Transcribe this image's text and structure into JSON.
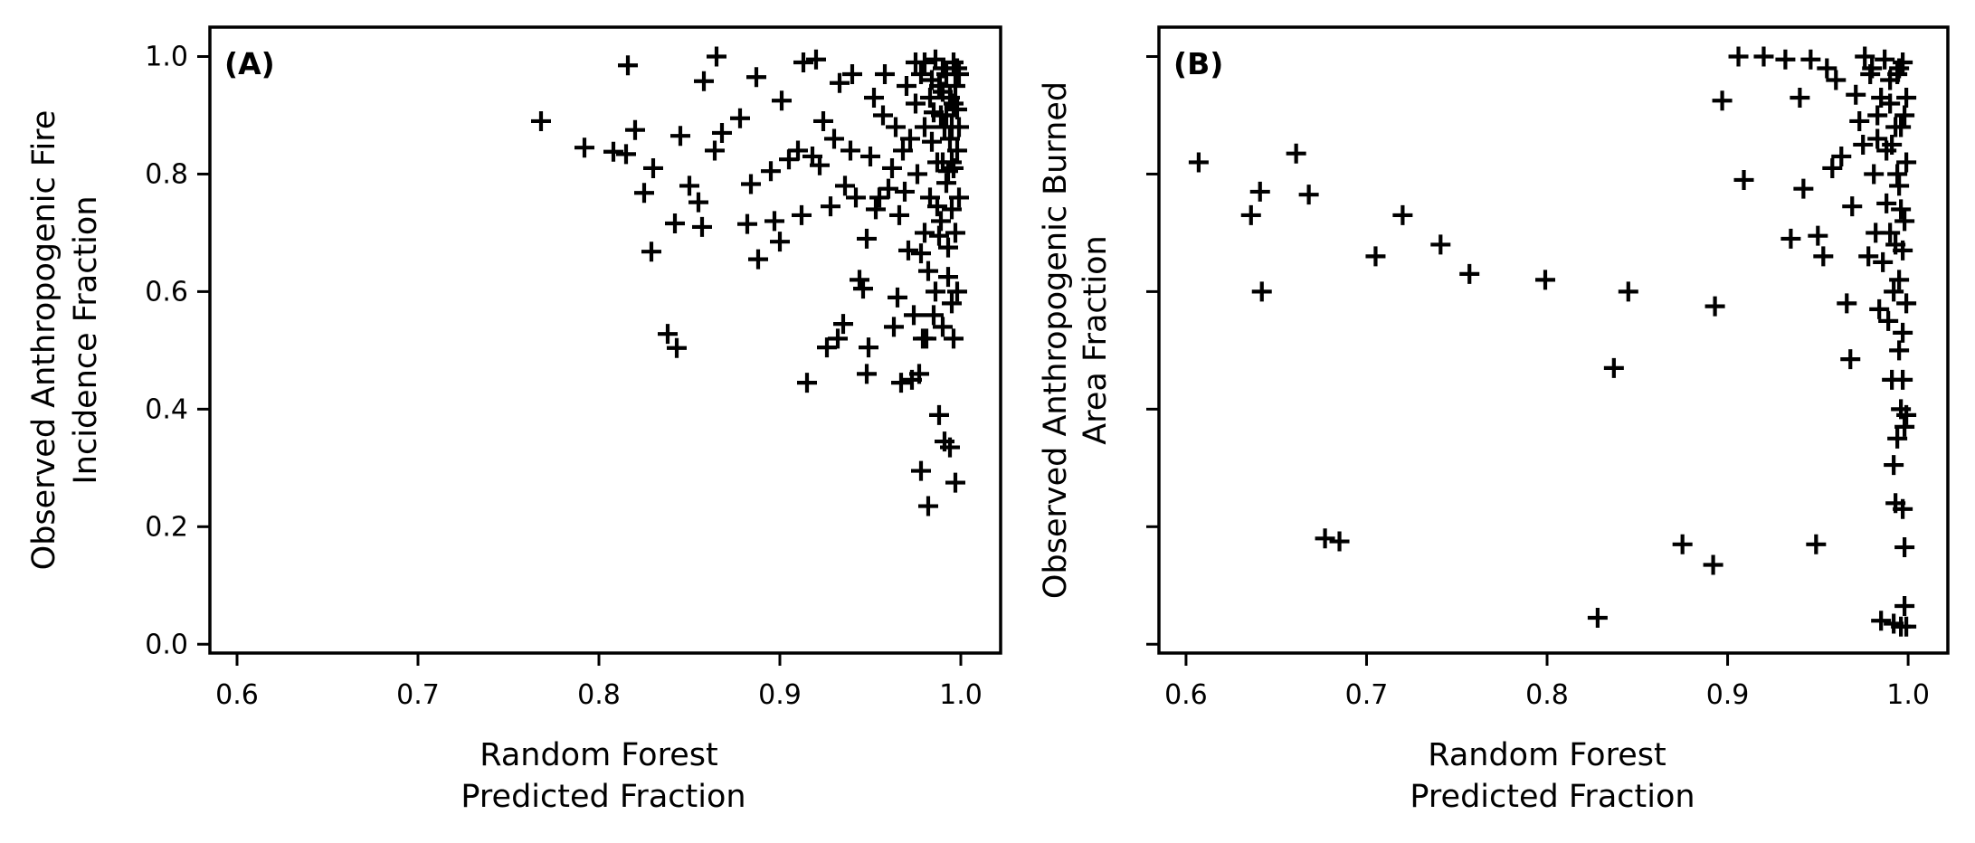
{
  "chart_data": [
    {
      "type": "scatter",
      "panel_label": "(A)",
      "xlabel": [
        "Random Forest",
        "Predicted Fraction"
      ],
      "ylabel": [
        "Observed Anthropogenic Fire",
        "Incidence Fraction"
      ],
      "xlim": [
        0.585,
        1.022
      ],
      "ylim": [
        -0.015,
        1.05
      ],
      "xticks": [
        "0.6",
        "0.7",
        "0.8",
        "0.9",
        "1.0"
      ],
      "yticks": [
        "0.0",
        "0.2",
        "0.4",
        "0.6",
        "0.8",
        "1.0"
      ],
      "marker": "+",
      "grid": false,
      "points": [
        [
          0.768,
          0.89
        ],
        [
          0.792,
          0.845
        ],
        [
          0.808,
          0.838
        ],
        [
          0.815,
          0.834
        ],
        [
          0.816,
          0.985
        ],
        [
          0.82,
          0.875
        ],
        [
          0.825,
          0.768
        ],
        [
          0.83,
          0.81
        ],
        [
          0.829,
          0.668
        ],
        [
          0.838,
          0.528
        ],
        [
          0.843,
          0.504
        ],
        [
          0.842,
          0.716
        ],
        [
          0.845,
          0.865
        ],
        [
          0.85,
          0.78
        ],
        [
          0.855,
          0.752
        ],
        [
          0.857,
          0.71
        ],
        [
          0.858,
          0.958
        ],
        [
          0.865,
          1.0
        ],
        [
          0.864,
          0.84
        ],
        [
          0.868,
          0.87
        ],
        [
          0.878,
          0.895
        ],
        [
          0.882,
          0.715
        ],
        [
          0.884,
          0.783
        ],
        [
          0.888,
          0.655
        ],
        [
          0.887,
          0.965
        ],
        [
          0.895,
          0.805
        ],
        [
          0.897,
          0.72
        ],
        [
          0.9,
          0.685
        ],
        [
          0.901,
          0.925
        ],
        [
          0.905,
          0.825
        ],
        [
          0.91,
          0.84
        ],
        [
          0.912,
          0.73
        ],
        [
          0.913,
          0.99
        ],
        [
          0.915,
          0.445
        ],
        [
          0.918,
          0.83
        ],
        [
          0.92,
          0.995
        ],
        [
          0.922,
          0.815
        ],
        [
          0.924,
          0.89
        ],
        [
          0.926,
          0.505
        ],
        [
          0.928,
          0.745
        ],
        [
          0.93,
          0.86
        ],
        [
          0.932,
          0.52
        ],
        [
          0.933,
          0.955
        ],
        [
          0.935,
          0.545
        ],
        [
          0.936,
          0.78
        ],
        [
          0.939,
          0.84
        ],
        [
          0.94,
          0.97
        ],
        [
          0.942,
          0.76
        ],
        [
          0.944,
          0.62
        ],
        [
          0.946,
          0.605
        ],
        [
          0.948,
          0.69
        ],
        [
          0.948,
          0.46
        ],
        [
          0.949,
          0.505
        ],
        [
          0.95,
          0.83
        ],
        [
          0.952,
          0.93
        ],
        [
          0.953,
          0.74
        ],
        [
          0.955,
          0.76
        ],
        [
          0.957,
          0.9
        ],
        [
          0.958,
          0.97
        ],
        [
          0.96,
          0.775
        ],
        [
          0.962,
          0.81
        ],
        [
          0.963,
          0.54
        ],
        [
          0.964,
          0.88
        ],
        [
          0.965,
          0.59
        ],
        [
          0.966,
          0.73
        ],
        [
          0.967,
          0.445
        ],
        [
          0.968,
          0.84
        ],
        [
          0.969,
          0.77
        ],
        [
          0.97,
          0.95
        ],
        [
          0.971,
          0.67
        ],
        [
          0.972,
          0.86
        ],
        [
          0.973,
          0.45
        ],
        [
          0.974,
          0.56
        ],
        [
          0.975,
          0.92
        ],
        [
          0.976,
          0.8
        ],
        [
          0.977,
          0.46
        ],
        [
          0.978,
          0.665
        ],
        [
          0.978,
          0.295
        ],
        [
          0.979,
          0.52
        ],
        [
          0.98,
          0.99
        ],
        [
          0.98,
          0.7
        ],
        [
          0.98,
          0.88
        ],
        [
          0.981,
          0.52
        ],
        [
          0.982,
          0.635
        ],
        [
          0.982,
          0.235
        ],
        [
          0.983,
          0.76
        ],
        [
          0.984,
          0.96
        ],
        [
          0.984,
          0.855
        ],
        [
          0.985,
          0.56
        ],
        [
          0.986,
          0.6
        ],
        [
          0.986,
          0.995
        ],
        [
          0.987,
          0.82
        ],
        [
          0.988,
          0.695
        ],
        [
          0.988,
          0.39
        ],
        [
          0.989,
          0.9
        ],
        [
          0.989,
          0.72
        ],
        [
          0.99,
          0.98
        ],
        [
          0.99,
          0.54
        ],
        [
          0.991,
          0.345
        ],
        [
          0.991,
          0.88
        ],
        [
          0.992,
          0.785
        ],
        [
          0.992,
          0.97
        ],
        [
          0.993,
          0.675
        ],
        [
          0.993,
          0.625
        ],
        [
          0.994,
          0.335
        ],
        [
          0.994,
          0.93
        ],
        [
          0.995,
          0.74
        ],
        [
          0.995,
          0.58
        ],
        [
          0.995,
          0.88
        ],
        [
          0.996,
          0.52
        ],
        [
          0.996,
          0.99
        ],
        [
          0.996,
          0.81
        ],
        [
          0.997,
          0.275
        ],
        [
          0.997,
          0.95
        ],
        [
          0.997,
          0.7
        ],
        [
          0.998,
          0.6
        ],
        [
          0.998,
          0.91
        ],
        [
          0.998,
          0.84
        ],
        [
          0.999,
          0.76
        ],
        [
          0.999,
          0.97
        ],
        [
          0.999,
          0.88
        ],
        [
          0.99,
          0.94
        ],
        [
          0.992,
          0.9
        ],
        [
          0.994,
          0.86
        ],
        [
          0.983,
          0.93
        ],
        [
          0.978,
          0.97
        ],
        [
          0.975,
          0.99
        ],
        [
          0.985,
          0.905
        ],
        [
          0.988,
          0.95
        ],
        [
          0.99,
          0.82
        ],
        [
          0.995,
          0.82
        ],
        [
          0.996,
          0.92
        ],
        [
          0.998,
          0.98
        ],
        [
          0.987,
          0.745
        ],
        [
          0.993,
          0.805
        ]
      ]
    },
    {
      "type": "scatter",
      "panel_label": "(B)",
      "xlabel": [
        "Random Forest",
        "Predicted Fraction"
      ],
      "ylabel": [
        "Observed Anthropogenic Burned",
        "Area Fraction"
      ],
      "xlim": [
        0.585,
        1.022
      ],
      "ylim": [
        -0.015,
        1.05
      ],
      "xticks": [
        "0.6",
        "0.7",
        "0.8",
        "0.9",
        "1.0"
      ],
      "yticks": [
        "",
        "",
        "",
        "",
        "",
        ""
      ],
      "marker": "+",
      "grid": false,
      "points": [
        [
          0.607,
          0.82
        ],
        [
          0.636,
          0.73
        ],
        [
          0.641,
          0.77
        ],
        [
          0.642,
          0.6
        ],
        [
          0.661,
          0.835
        ],
        [
          0.668,
          0.765
        ],
        [
          0.677,
          0.18
        ],
        [
          0.685,
          0.175
        ],
        [
          0.705,
          0.66
        ],
        [
          0.72,
          0.73
        ],
        [
          0.741,
          0.68
        ],
        [
          0.757,
          0.63
        ],
        [
          0.799,
          0.62
        ],
        [
          0.828,
          0.045
        ],
        [
          0.837,
          0.47
        ],
        [
          0.845,
          0.6
        ],
        [
          0.875,
          0.17
        ],
        [
          0.892,
          0.135
        ],
        [
          0.893,
          0.575
        ],
        [
          0.897,
          0.925
        ],
        [
          0.906,
          1.0
        ],
        [
          0.909,
          0.79
        ],
        [
          0.92,
          1.0
        ],
        [
          0.932,
          0.995
        ],
        [
          0.935,
          0.69
        ],
        [
          0.94,
          0.93
        ],
        [
          0.942,
          0.775
        ],
        [
          0.946,
          0.995
        ],
        [
          0.949,
          0.17
        ],
        [
          0.95,
          0.695
        ],
        [
          0.953,
          0.66
        ],
        [
          0.955,
          0.98
        ],
        [
          0.958,
          0.81
        ],
        [
          0.96,
          0.96
        ],
        [
          0.963,
          0.83
        ],
        [
          0.966,
          0.58
        ],
        [
          0.968,
          0.485
        ],
        [
          0.969,
          0.745
        ],
        [
          0.971,
          0.935
        ],
        [
          0.973,
          0.89
        ],
        [
          0.975,
          0.85
        ],
        [
          0.976,
          1.0
        ],
        [
          0.978,
          0.66
        ],
        [
          0.979,
          0.97
        ],
        [
          0.981,
          0.8
        ],
        [
          0.982,
          0.7
        ],
        [
          0.983,
          0.9
        ],
        [
          0.984,
          0.57
        ],
        [
          0.985,
          0.04
        ],
        [
          0.986,
          0.65
        ],
        [
          0.987,
          0.995
        ],
        [
          0.988,
          0.75
        ],
        [
          0.989,
          0.55
        ],
        [
          0.99,
          0.92
        ],
        [
          0.991,
          0.45
        ],
        [
          0.991,
          0.85
        ],
        [
          0.992,
          0.305
        ],
        [
          0.992,
          0.035
        ],
        [
          0.993,
          0.24
        ],
        [
          0.993,
          0.68
        ],
        [
          0.994,
          0.35
        ],
        [
          0.994,
          0.97
        ],
        [
          0.995,
          0.5
        ],
        [
          0.995,
          0.78
        ],
        [
          0.995,
          0.62
        ],
        [
          0.996,
          0.03
        ],
        [
          0.996,
          0.88
        ],
        [
          0.996,
          0.4
        ],
        [
          0.997,
          0.23
        ],
        [
          0.997,
          0.99
        ],
        [
          0.997,
          0.53
        ],
        [
          0.998,
          0.37
        ],
        [
          0.998,
          0.065
        ],
        [
          0.998,
          0.72
        ],
        [
          0.998,
          0.165
        ],
        [
          0.999,
          0.82
        ],
        [
          0.999,
          0.93
        ],
        [
          0.999,
          0.39
        ],
        [
          0.999,
          0.58
        ],
        [
          0.999,
          0.03
        ],
        [
          0.99,
          0.96
        ],
        [
          0.993,
          0.88
        ],
        [
          0.996,
          0.74
        ],
        [
          0.985,
          0.93
        ],
        [
          0.98,
          0.98
        ],
        [
          0.988,
          0.84
        ],
        [
          0.997,
          0.67
        ],
        [
          0.994,
          0.8
        ],
        [
          0.992,
          0.6
        ],
        [
          0.998,
          0.9
        ],
        [
          0.995,
          0.98
        ],
        [
          0.983,
          0.86
        ],
        [
          0.99,
          0.7
        ],
        [
          0.997,
          0.45
        ]
      ]
    }
  ]
}
